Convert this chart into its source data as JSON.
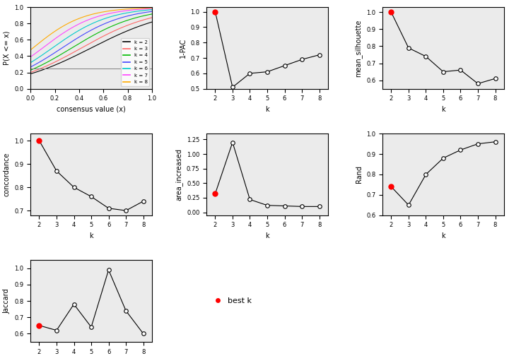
{
  "k_vals": [
    2,
    3,
    4,
    5,
    6,
    7,
    8
  ],
  "one_pac": [
    1.0,
    0.51,
    0.6,
    0.61,
    0.65,
    0.69,
    0.72
  ],
  "mean_silhouette": [
    1.0,
    0.79,
    0.74,
    0.65,
    0.66,
    0.58,
    0.61
  ],
  "concordance": [
    1.0,
    0.87,
    0.8,
    0.76,
    0.71,
    0.7,
    0.74
  ],
  "area_increased": [
    0.32,
    1.2,
    0.22,
    0.12,
    0.11,
    0.1,
    0.1
  ],
  "rand": [
    0.74,
    0.65,
    0.8,
    0.88,
    0.92,
    0.95,
    0.96
  ],
  "jaccard": [
    0.65,
    0.62,
    0.78,
    0.64,
    0.99,
    0.74,
    0.6
  ],
  "best_k_idx": 0,
  "ecdf_colors": [
    "#000000",
    "#FF6666",
    "#00BB00",
    "#4444FF",
    "#00CCCC",
    "#FF44FF",
    "#FFAA00"
  ],
  "ecdf_labels": [
    "k = 2",
    "k = 3",
    "k = 4",
    "k = 5",
    "k = 6",
    "k = 7",
    "k = 8"
  ],
  "bg_color": "#EBEBEB"
}
